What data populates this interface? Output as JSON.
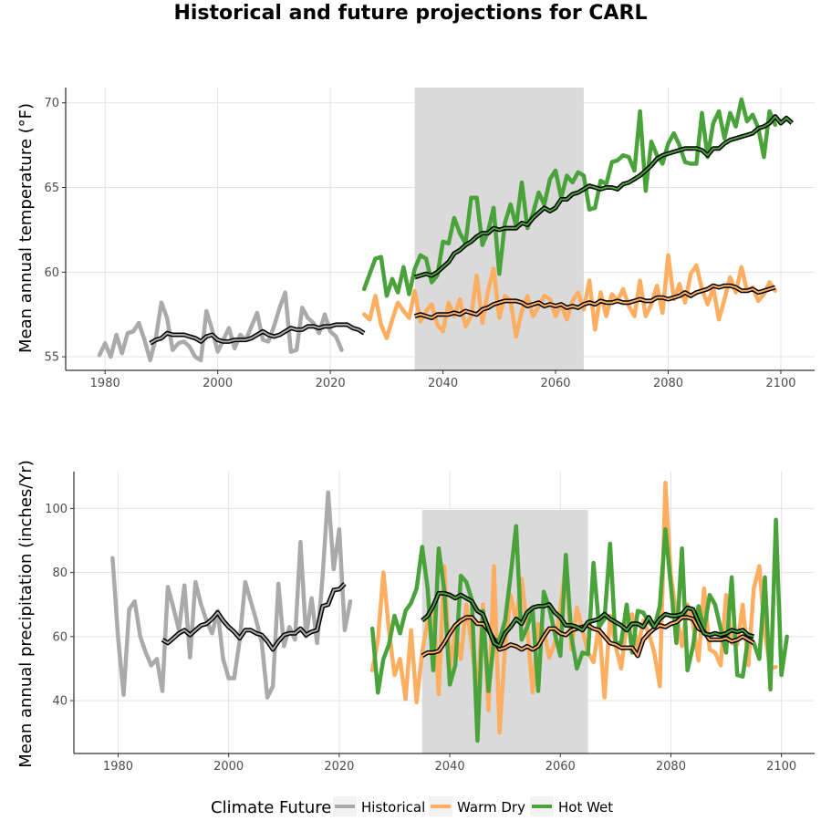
{
  "title": "Historical and future projections for CARL",
  "legend": {
    "title": "Climate Future",
    "items": [
      {
        "label": "Historical",
        "color": "#aaaaaa"
      },
      {
        "label": "Warm Dry",
        "color": "#fdae61"
      },
      {
        "label": "Hot Wet",
        "color": "#4aa23a"
      }
    ]
  },
  "chart_data": [
    {
      "type": "line",
      "ylabel": "Mean annual temperature (°F)",
      "xlabel": "",
      "xlim": [
        1973,
        2106
      ],
      "ylim": [
        54.2,
        70.9
      ],
      "x_ticks": [
        1980,
        2000,
        2020,
        2040,
        2060,
        2080,
        2100
      ],
      "y_ticks": [
        55,
        60,
        65,
        70
      ],
      "grid": true,
      "shaded_period": [
        2035,
        2065
      ],
      "series": [
        {
          "name": "Historical",
          "color": "#aaaaaa",
          "x_start": 1979,
          "values": [
            55.1,
            55.8,
            55.0,
            56.3,
            55.2,
            56.4,
            56.5,
            57.0,
            56.0,
            54.8,
            56.1,
            58.2,
            57.3,
            55.4,
            55.8,
            55.9,
            55.6,
            55.0,
            54.8,
            57.7,
            56.6,
            55.3,
            56.0,
            56.7,
            55.5,
            56.3,
            56.0,
            56.8,
            57.6,
            56.0,
            55.9,
            56.8,
            57.9,
            58.8,
            55.3,
            55.4,
            57.9,
            57.3,
            57.0,
            56.4,
            57.5,
            56.5,
            56.2,
            55.4
          ]
        },
        {
          "name": "Warm Dry",
          "color": "#fdae61",
          "x_start": 2026,
          "values": [
            57.5,
            57.2,
            58.6,
            56.9,
            56.1,
            57.2,
            58.2,
            57.7,
            57.3,
            58.9,
            57.1,
            57.7,
            58.1,
            56.9,
            56.5,
            58.2,
            57.4,
            58.4,
            56.8,
            57.4,
            59.8,
            57.0,
            58.9,
            60.2,
            57.3,
            58.6,
            58.3,
            56.2,
            57.7,
            58.6,
            57.4,
            58.0,
            58.6,
            58.4,
            57.4,
            58.1,
            57.2,
            58.3,
            58.8,
            57.8,
            59.5,
            56.6,
            58.8,
            57.4,
            58.7,
            58.3,
            59.0,
            58.0,
            57.4,
            59.5,
            57.4,
            58.1,
            59.2,
            57.6,
            61.0,
            58.4,
            59.3,
            58.2,
            59.9,
            60.4,
            59.0,
            58.1,
            59.1,
            57.2,
            58.4,
            59.7,
            58.8,
            60.3,
            58.9,
            59.1,
            58.3,
            58.7,
            59.4,
            58.9
          ]
        },
        {
          "name": "Hot Wet",
          "color": "#4aa23a",
          "x_start": 2026,
          "values": [
            59.0,
            59.9,
            60.8,
            60.9,
            58.6,
            59.6,
            58.8,
            60.3,
            58.7,
            60.2,
            61.0,
            60.8,
            59.4,
            59.8,
            61.8,
            61.7,
            63.2,
            62.3,
            61.7,
            64.4,
            64.4,
            61.6,
            62.4,
            63.8,
            59.9,
            62.9,
            64.0,
            62.7,
            65.3,
            62.6,
            63.5,
            64.7,
            64.0,
            65.5,
            66.0,
            64.4,
            65.7,
            65.3,
            65.9,
            65.7,
            63.7,
            63.8,
            65.4,
            65.2,
            66.5,
            66.6,
            66.9,
            66.8,
            66.0,
            69.5,
            64.8,
            67.7,
            66.9,
            66.4,
            67.6,
            68.2,
            67.5,
            66.5,
            66.4,
            66.4,
            69.4,
            66.8,
            68.8,
            69.5,
            67.9,
            69.4,
            68.6,
            70.2,
            68.9,
            69.3,
            68.5,
            66.8,
            69.5,
            68.7
          ]
        }
      ],
      "moving_averages": [
        {
          "name": "Historical",
          "x_start": 1988,
          "values": [
            55.8,
            56.0,
            56.1,
            56.4,
            56.3,
            56.3,
            56.3,
            56.2,
            56.1,
            55.9,
            56.2,
            56.3,
            56.0,
            55.9,
            55.9,
            56.0,
            56.0,
            56.0,
            56.1,
            56.3,
            56.5,
            56.3,
            56.2,
            56.3,
            56.5,
            56.7,
            56.6,
            56.6,
            56.8,
            56.8,
            56.7,
            56.8,
            56.8,
            56.9,
            56.9,
            56.9,
            56.7,
            56.6,
            56.4
          ]
        },
        {
          "name": "Warm Dry",
          "x_start": 2035,
          "values": [
            57.4,
            57.5,
            57.4,
            57.3,
            57.5,
            57.5,
            57.5,
            57.6,
            57.5,
            57.7,
            57.6,
            57.5,
            57.8,
            57.9,
            58.1,
            58.2,
            58.3,
            58.3,
            58.3,
            58.2,
            58.0,
            58.1,
            58.2,
            58.0,
            58.1,
            58.0,
            58.1,
            57.9,
            58.0,
            57.9,
            58.1,
            58.2,
            58.1,
            58.3,
            58.2,
            58.2,
            58.3,
            58.2,
            58.2,
            58.3,
            58.4,
            58.3,
            58.3,
            58.5,
            58.5,
            58.4,
            58.5,
            58.6,
            58.8,
            58.6,
            58.8,
            58.9,
            59.0,
            59.2,
            59.1,
            59.2,
            59.2,
            59.1,
            58.9,
            58.9,
            59.0,
            58.8,
            58.9,
            59.0,
            59.1
          ]
        },
        {
          "name": "Hot Wet",
          "x_start": 2035,
          "values": [
            59.7,
            59.8,
            59.9,
            59.8,
            60.0,
            60.3,
            60.6,
            61.1,
            61.3,
            61.6,
            61.8,
            62.1,
            62.3,
            62.3,
            62.6,
            62.5,
            62.6,
            62.6,
            62.6,
            62.9,
            62.8,
            63.2,
            63.5,
            63.8,
            63.6,
            63.8,
            64.3,
            64.3,
            64.6,
            64.7,
            64.9,
            65.1,
            65.0,
            64.9,
            65.0,
            65.0,
            64.9,
            65.2,
            65.3,
            65.5,
            65.7,
            66.0,
            66.3,
            66.7,
            66.9,
            67.0,
            67.1,
            67.2,
            67.3,
            67.3,
            67.3,
            67.2,
            66.9,
            67.3,
            67.3,
            67.6,
            67.8,
            67.9,
            68.0,
            68.1,
            68.2,
            68.5,
            68.6,
            68.8,
            69.2,
            68.8,
            69.1,
            68.8
          ]
        }
      ]
    },
    {
      "type": "line",
      "ylabel": "Mean annual precipitation (inches/Yr)",
      "xlabel": "",
      "xlim": [
        1972,
        2106
      ],
      "ylim": [
        23.5,
        111.5
      ],
      "x_ticks": [
        1980,
        2000,
        2020,
        2040,
        2060,
        2080,
        2100
      ],
      "y_ticks": [
        40,
        60,
        80,
        100
      ],
      "grid": true,
      "shaded_period": [
        2035,
        2065
      ],
      "series": [
        {
          "name": "Historical",
          "color": "#aaaaaa",
          "x_start": 1979,
          "values": [
            84.5,
            59.5,
            41.8,
            68.5,
            71.0,
            60.0,
            55.0,
            51.0,
            53.0,
            43.0,
            75.5,
            69.0,
            62.0,
            76.0,
            53.5,
            77.0,
            70.0,
            65.0,
            61.0,
            68.0,
            53.0,
            47.0,
            47.0,
            59.0,
            77.0,
            71.0,
            65.0,
            58.0,
            41.0,
            44.5,
            76.5,
            57.0,
            63.0,
            59.0,
            89.5,
            60.0,
            72.0,
            58.0,
            79.0,
            105.0,
            81.0,
            93.5,
            62.0,
            71.0
          ]
        },
        {
          "name": "Warm Dry",
          "color": "#fdae61",
          "x_start": 2026,
          "values": [
            49.5,
            59.0,
            80.0,
            62.0,
            48.0,
            53.0,
            40.5,
            62.0,
            39.5,
            55.0,
            65.0,
            70.0,
            42.0,
            82.0,
            50.0,
            62.0,
            53.0,
            70.0,
            57.0,
            43.0,
            70.0,
            37.0,
            82.0,
            30.0,
            57.0,
            73.0,
            65.0,
            78.0,
            63.0,
            42.5,
            64.0,
            62.0,
            53.5,
            58.0,
            69.0,
            82.5,
            56.0,
            69.0,
            62.0,
            55.0,
            52.0,
            64.0,
            41.0,
            66.5,
            57.0,
            50.0,
            64.0,
            67.0,
            56.0,
            65.0,
            61.0,
            55.0,
            44.5,
            108.0,
            79.0,
            67.0,
            57.0,
            70.0,
            64.0,
            52.5,
            75.0,
            56.0,
            55.0,
            51.0,
            73.0,
            58.0,
            57.5,
            70.0,
            51.0,
            75.0,
            82.0,
            61.0,
            50.0,
            50.5
          ]
        },
        {
          "name": "Hot Wet",
          "color": "#4aa23a",
          "x_start": 2026,
          "values": [
            62.5,
            42.5,
            53.0,
            57.5,
            66.5,
            61.0,
            68.0,
            70.5,
            75.0,
            88.0,
            75.0,
            49.5,
            87.5,
            74.5,
            45.0,
            51.0,
            79.0,
            77.0,
            71.5,
            27.5,
            68.0,
            43.0,
            59.0,
            59.0,
            65.0,
            79.0,
            94.5,
            59.0,
            63.0,
            68.0,
            43.0,
            74.0,
            69.0,
            61.0,
            54.0,
            85.5,
            60.0,
            50.0,
            55.0,
            54.5,
            83.0,
            63.0,
            65.5,
            89.0,
            58.0,
            58.0,
            70.0,
            55.0,
            68.0,
            67.5,
            64.5,
            63.0,
            69.5,
            93.5,
            76.0,
            58.0,
            87.5,
            49.5,
            57.0,
            69.5,
            62.0,
            73.0,
            70.0,
            62.5,
            55.0,
            78.5,
            48.0,
            47.5,
            60.0,
            58.0,
            53.0,
            78.5,
            43.5,
            96.5,
            48.0,
            60.0
          ]
        }
      ],
      "moving_averages": [
        {
          "name": "Historical",
          "x_start": 1988,
          "values": [
            59.0,
            58.0,
            59.5,
            61.0,
            62.0,
            60.5,
            62.0,
            63.5,
            64.0,
            65.5,
            67.5,
            65.0,
            63.0,
            61.5,
            59.5,
            62.0,
            62.0,
            61.0,
            60.5,
            58.5,
            56.0,
            58.5,
            60.5,
            61.0,
            61.0,
            62.5,
            60.5,
            61.5,
            62.0,
            69.5,
            70.0,
            74.5,
            74.8,
            76.5
          ]
        },
        {
          "name": "Warm Dry",
          "x_start": 2035,
          "values": [
            54.0,
            55.0,
            55.0,
            55.5,
            58.0,
            61.0,
            63.5,
            65.0,
            66.0,
            66.0,
            64.0,
            64.0,
            62.0,
            59.0,
            56.0,
            56.5,
            57.5,
            57.0,
            56.0,
            57.0,
            56.0,
            57.0,
            60.0,
            62.5,
            62.5,
            61.0,
            60.5,
            62.0,
            62.5,
            63.0,
            63.5,
            62.5,
            62.0,
            60.0,
            58.0,
            57.5,
            56.5,
            56.5,
            56.5,
            54.0,
            59.0,
            61.0,
            62.5,
            63.5,
            63.0,
            64.0,
            64.5,
            66.0,
            66.0,
            65.5,
            62.5,
            61.5,
            59.0,
            59.0,
            59.0,
            59.5,
            58.5,
            59.0,
            60.0,
            59.0,
            58.0
          ]
        },
        {
          "name": "Hot Wet",
          "x_start": 2035,
          "values": [
            65.0,
            66.5,
            69.5,
            73.5,
            73.5,
            73.0,
            72.0,
            73.0,
            72.0,
            71.0,
            68.0,
            67.0,
            62.5,
            58.0,
            57.0,
            61.0,
            63.0,
            65.5,
            64.0,
            67.5,
            69.0,
            69.5,
            69.5,
            70.0,
            67.5,
            66.0,
            63.5,
            63.5,
            63.0,
            62.0,
            64.5,
            65.0,
            65.5,
            67.0,
            65.5,
            64.5,
            63.5,
            62.0,
            64.0,
            64.0,
            63.0,
            66.0,
            63.0,
            65.5,
            67.0,
            66.5,
            66.5,
            67.0,
            69.0,
            68.5,
            64.5,
            61.0,
            60.5,
            61.0,
            60.5,
            61.0,
            62.0,
            61.5,
            62.0,
            60.5,
            60.0
          ]
        }
      ]
    }
  ]
}
